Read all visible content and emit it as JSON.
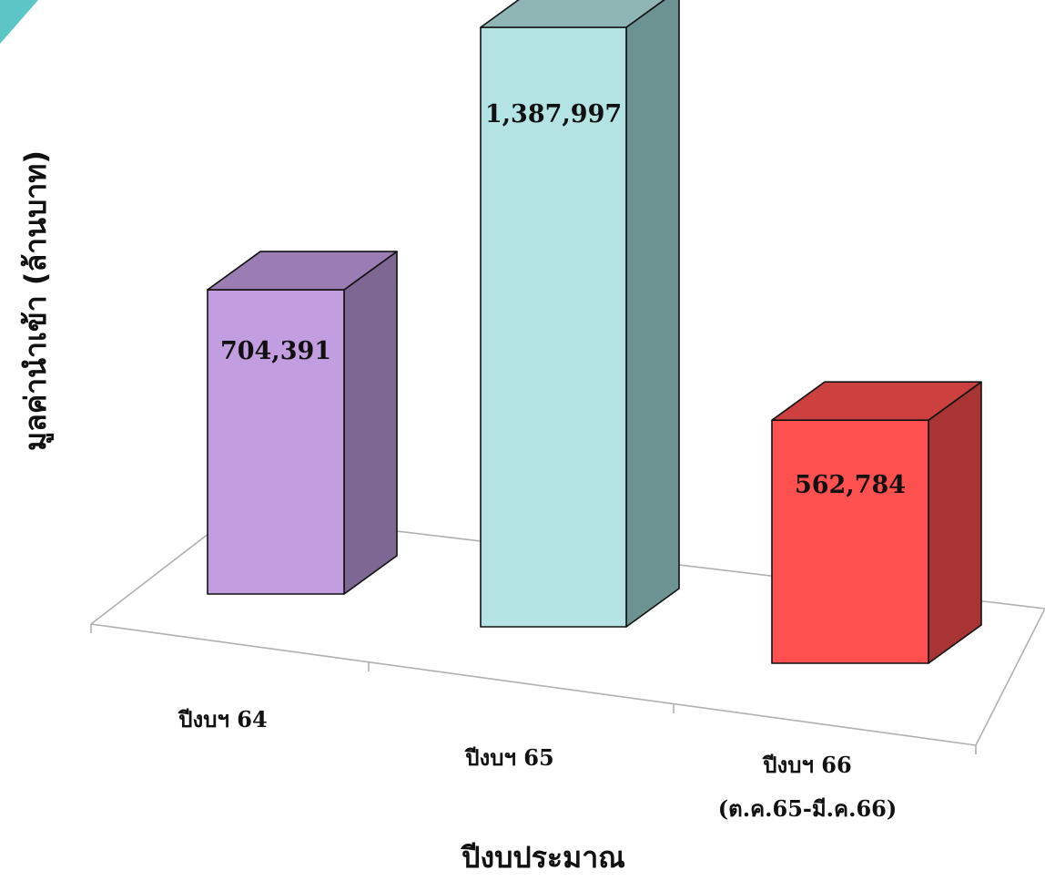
{
  "chart_data": {
    "type": "bar",
    "three_d": true,
    "categories": [
      "ปีงบฯ 64",
      "ปีงบฯ 65",
      "ปีงบฯ 66"
    ],
    "category_sublabels": [
      "",
      "",
      "(ต.ค.65-มี.ค.66)"
    ],
    "values": [
      704391,
      1387997,
      562784
    ],
    "value_labels": [
      "704,391",
      "1,387,997",
      "562,784"
    ],
    "xlabel": "ปีงบประมาณ",
    "ylabel": "มูลค่านำเข้า (ล้านบาท)",
    "ylim": [
      0,
      1500000
    ],
    "grid": false,
    "legend": "none",
    "colors": {
      "bar_front": [
        "#c29de0",
        "#b3e3e3",
        "#ff5050"
      ],
      "bar_side": [
        "#7e6792",
        "#6d9292",
        "#a83434"
      ],
      "bar_top": [
        "#9b7db3",
        "#8fb5b5",
        "#cc4040"
      ],
      "floor_line": "#b0b0b0",
      "corner_accent": "#5cc6c6"
    }
  }
}
